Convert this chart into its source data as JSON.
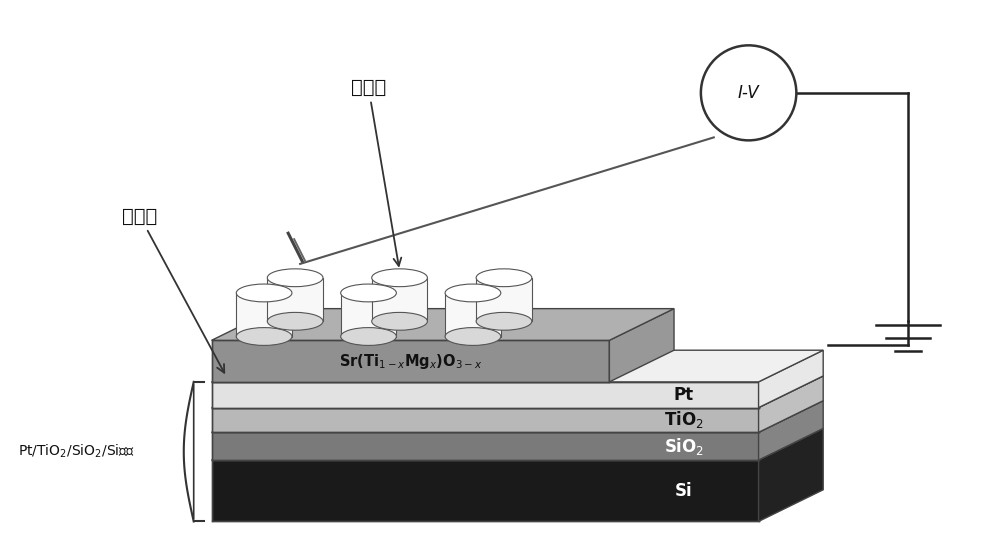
{
  "background_color": "#ffffff",
  "layers": [
    {
      "label": "Si",
      "front": "#1a1a1a",
      "top": "#2e2e2e",
      "right": "#222222",
      "lc": "#ffffff"
    },
    {
      "label": "SiO2",
      "front": "#7a7a7a",
      "top": "#909090",
      "right": "#848484",
      "lc": "#ffffff"
    },
    {
      "label": "TiO2",
      "front": "#b8b8b8",
      "top": "#cccccc",
      "right": "#c0c0c0",
      "lc": "#111111"
    },
    {
      "label": "Pt",
      "front": "#e2e2e2",
      "top": "#f0f0f0",
      "right": "#e8e8e8",
      "lc": "#111111"
    }
  ],
  "stmo_front": "#909090",
  "stmo_top": "#b0b0b0",
  "stmo_right": "#989898",
  "stmo_label": "Sr(Ti$_{1-x}$Mg$_x$)O$_{3-x}$",
  "cyl_body": "#f8f8f8",
  "cyl_top": "#ffffff",
  "cyl_bot": "#d8d8d8",
  "cyl_edge": "#555555",
  "label_upper": "上电极",
  "label_lower": "下电极",
  "label_substrate": "Pt/TiO$_2$/SiO$_2$/Si基片",
  "iv_label": "I-V",
  "wire_color": "#222222",
  "ann_color": "#111111",
  "edge_color": "#444444"
}
